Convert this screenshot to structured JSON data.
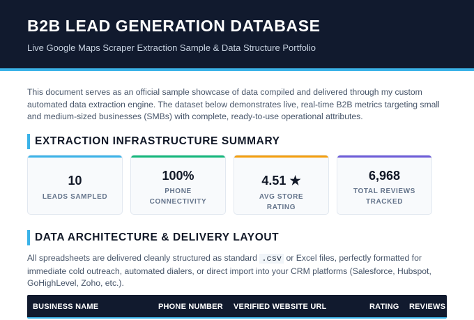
{
  "header": {
    "title": "B2B LEAD GENERATION DATABASE",
    "subtitle": "Live Google Maps Scraper Extraction Sample & Data Structure Portfolio"
  },
  "intro": "This document serves as an official sample showcase of data compiled and delivered through my custom automated data extraction engine. The dataset below demonstrates live, real-time B2B metrics targeting small and medium-sized businesses (SMBs) with complete, ready-to-use operational attributes.",
  "summary": {
    "title": "EXTRACTION INFRASTRUCTURE SUMMARY",
    "cards": [
      {
        "value": "10",
        "label": "LEADS SAMPLED",
        "accent": "#3bb3e8"
      },
      {
        "value": "100%",
        "label": "PHONE CONNECTIVITY",
        "accent": "#14b87a"
      },
      {
        "value": "4.51 ★",
        "label": "AVG STORE RATING",
        "accent": "#f59e0b"
      },
      {
        "value": "6,968",
        "label": "TOTAL REVIEWS TRACKED",
        "accent": "#6d5bd8"
      }
    ]
  },
  "architecture": {
    "title": "DATA ARCHITECTURE & DELIVERY LAYOUT",
    "text_before": "All spreadsheets are delivered cleanly structured as standard ",
    "code": ".csv",
    "text_after": " or Excel files, perfectly formatted for immediate cold outreach, automated dialers, or direct import into your CRM platforms (Salesforce, Hubspot, GoHighLevel, Zoho, etc.)."
  },
  "table": {
    "columns": [
      "BUSINESS NAME",
      "PHONE NUMBER",
      "VERIFIED WEBSITE URL",
      "RATING",
      "REVIEWS"
    ]
  },
  "colors": {
    "header_bg": "#111a2e",
    "accent": "#3bb3e8"
  }
}
